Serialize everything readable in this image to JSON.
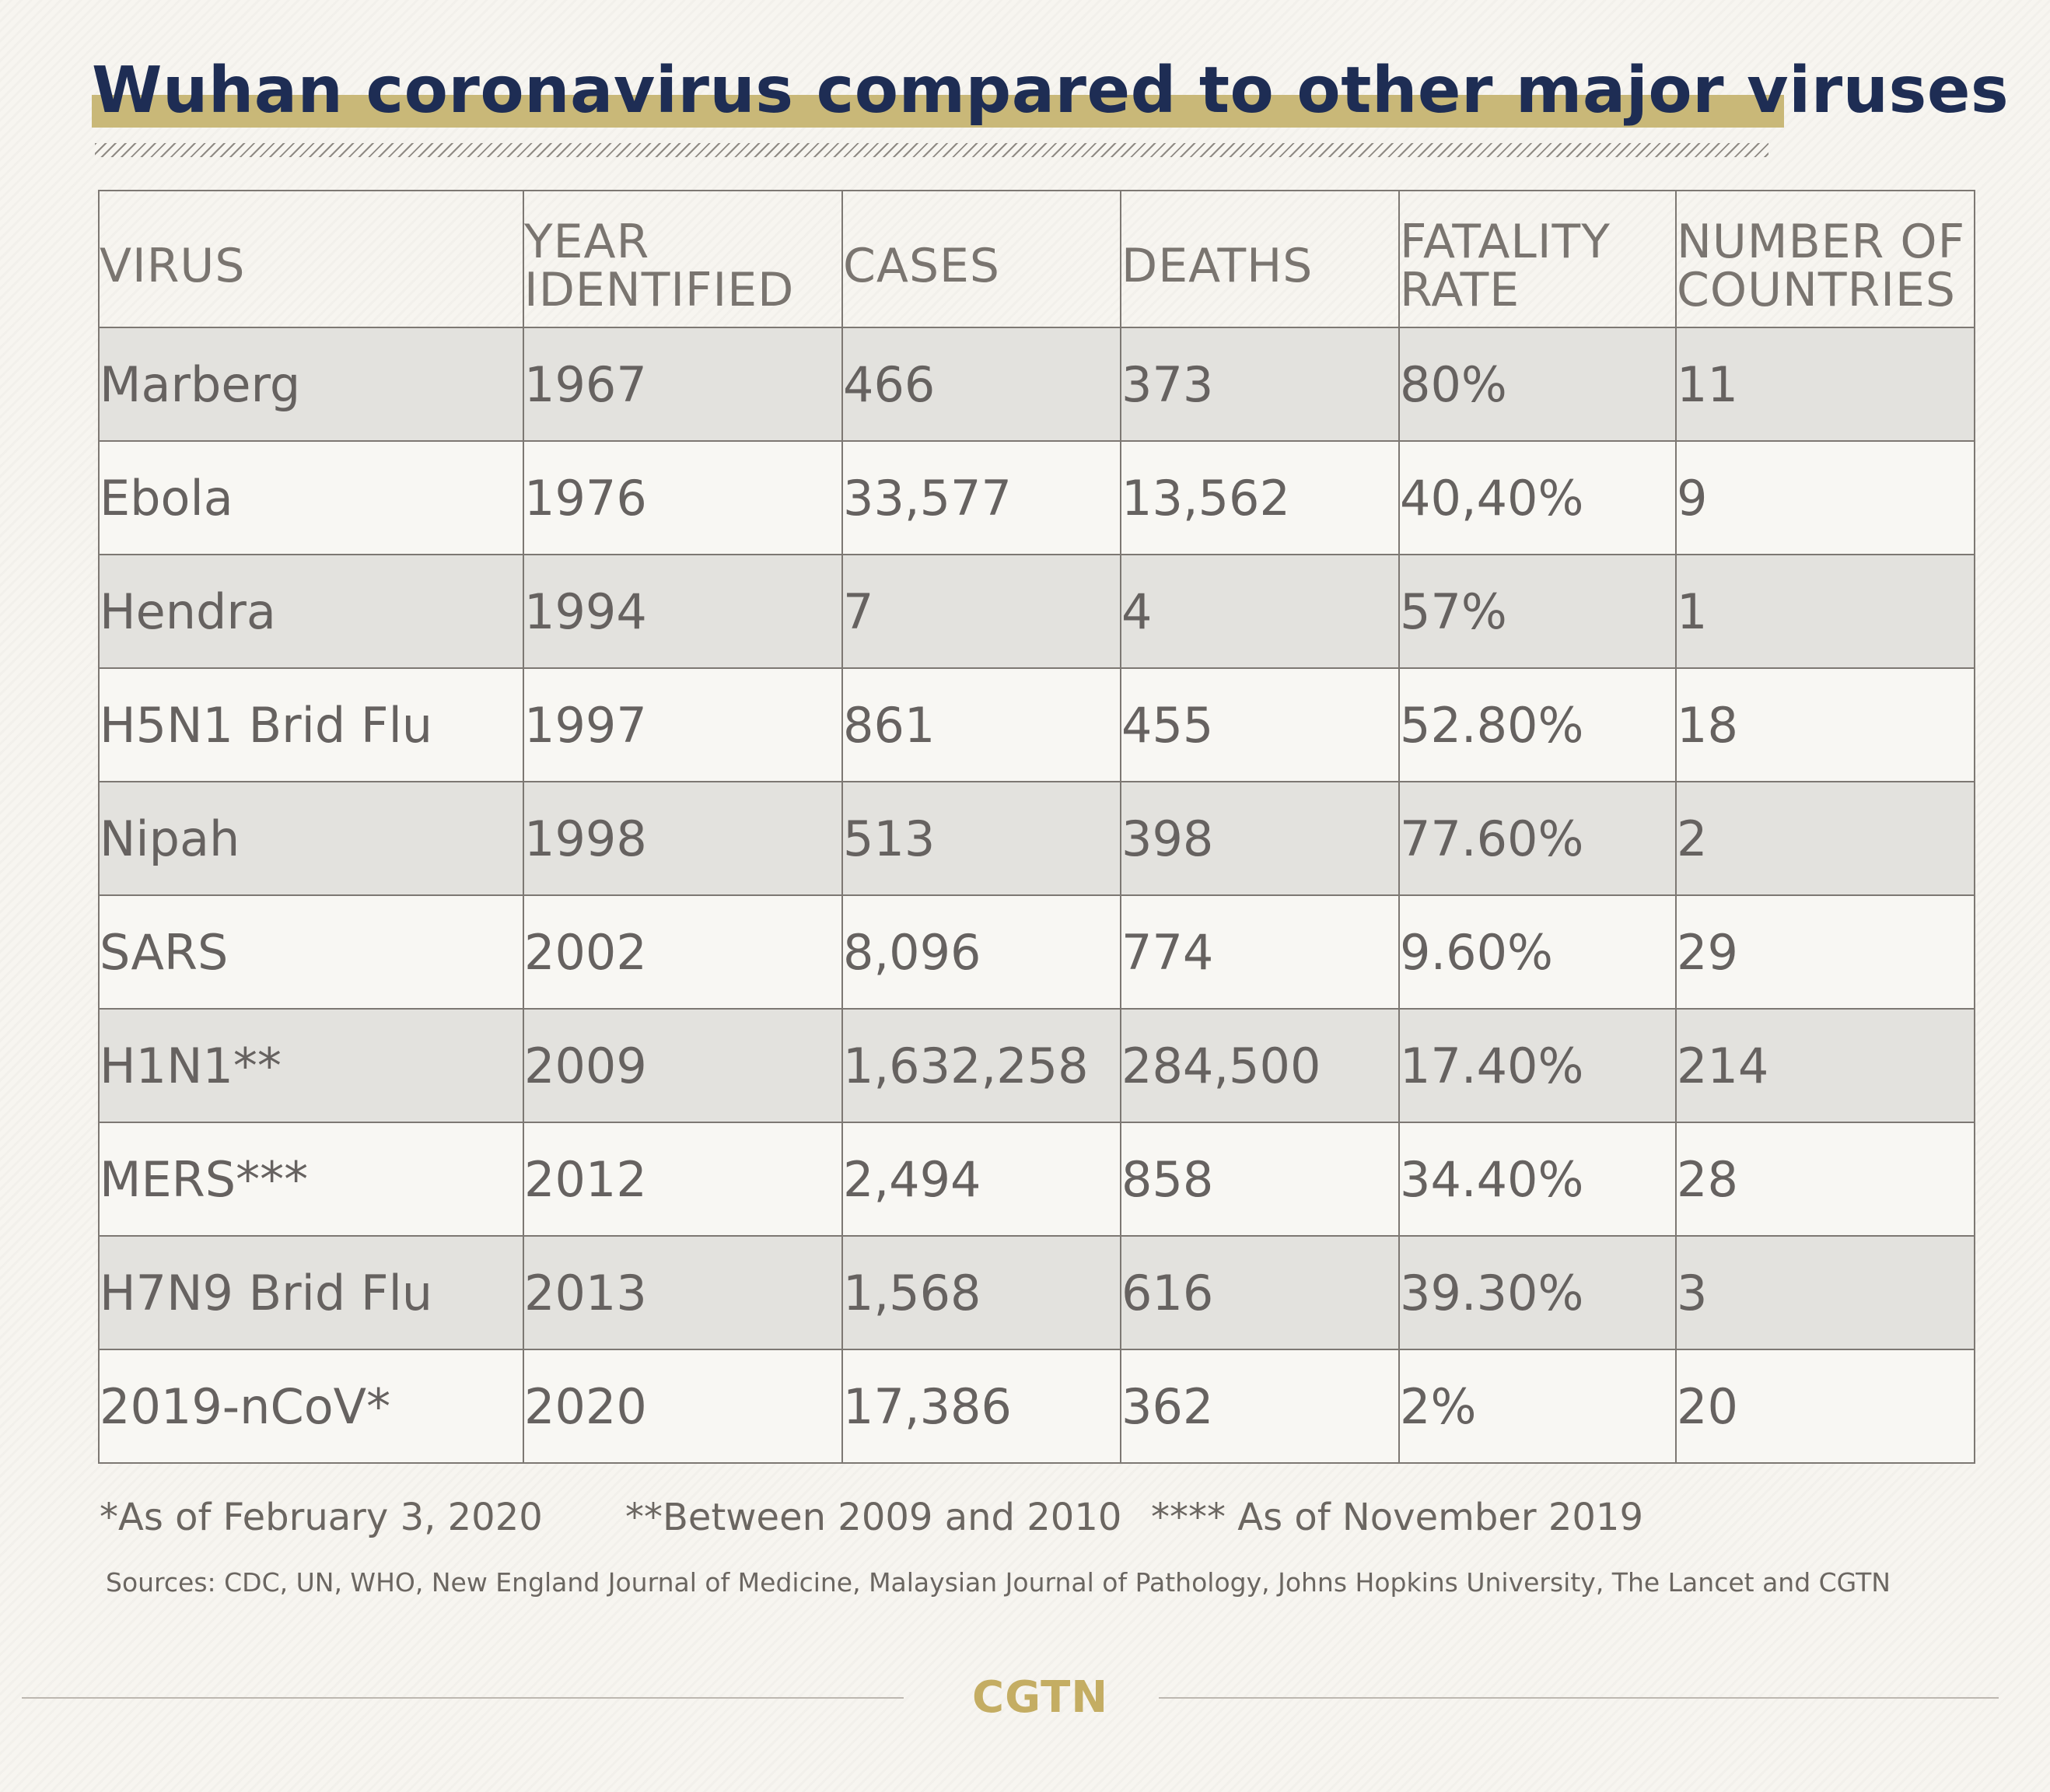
{
  "chart_data": {
    "type": "table",
    "title": "Wuhan coronavirus compared to other major viruses",
    "columns": [
      [
        "VIRUS"
      ],
      [
        "YEAR",
        "IDENTIFIED"
      ],
      [
        "CASES"
      ],
      [
        "DEATHS"
      ],
      [
        "FATALITY",
        "RATE"
      ],
      [
        "NUMBER OF",
        "COUNTRIES"
      ]
    ],
    "rows": [
      [
        "Marberg",
        "1967",
        "466",
        "373",
        "80%",
        "11"
      ],
      [
        "Ebola",
        "1976",
        "33,577",
        "13,562",
        "40,40%",
        "9"
      ],
      [
        "Hendra",
        "1994",
        "7",
        "4",
        "57%",
        "1"
      ],
      [
        "H5N1 Brid Flu",
        "1997",
        "861",
        "455",
        "52.80%",
        "18"
      ],
      [
        "Nipah",
        "1998",
        "513",
        "398",
        "77.60%",
        "2"
      ],
      [
        "SARS",
        "2002",
        "8,096",
        "774",
        "9.60%",
        "29"
      ],
      [
        "H1N1**",
        "2009",
        "1,632,258",
        "284,500",
        "17.40%",
        "214"
      ],
      [
        "MERS***",
        "2012",
        "2,494",
        "858",
        "34.40%",
        "28"
      ],
      [
        "H7N9 Brid Flu",
        "2013",
        "1,568",
        "616",
        "39.30%",
        "3"
      ],
      [
        "2019-nCoV*",
        "2020",
        "17,386",
        "362",
        "2%",
        "20"
      ]
    ]
  },
  "notes": [
    "*As of February 3, 2020",
    "**Between 2009 and 2010",
    "**** As of November 2019"
  ],
  "sources": "Sources: CDC, UN, WHO, New England Journal of Medicine, Malaysian Journal of Pathology, Johns Hopkins University, The Lancet and CGTN",
  "logo": "CGTN",
  "colors": {
    "title": "#1e2d54",
    "title_highlight": "#c9b878",
    "row_shaded": "#e3e2de",
    "row_plain": "#f8f7f3",
    "logo": "#c4ad63"
  }
}
